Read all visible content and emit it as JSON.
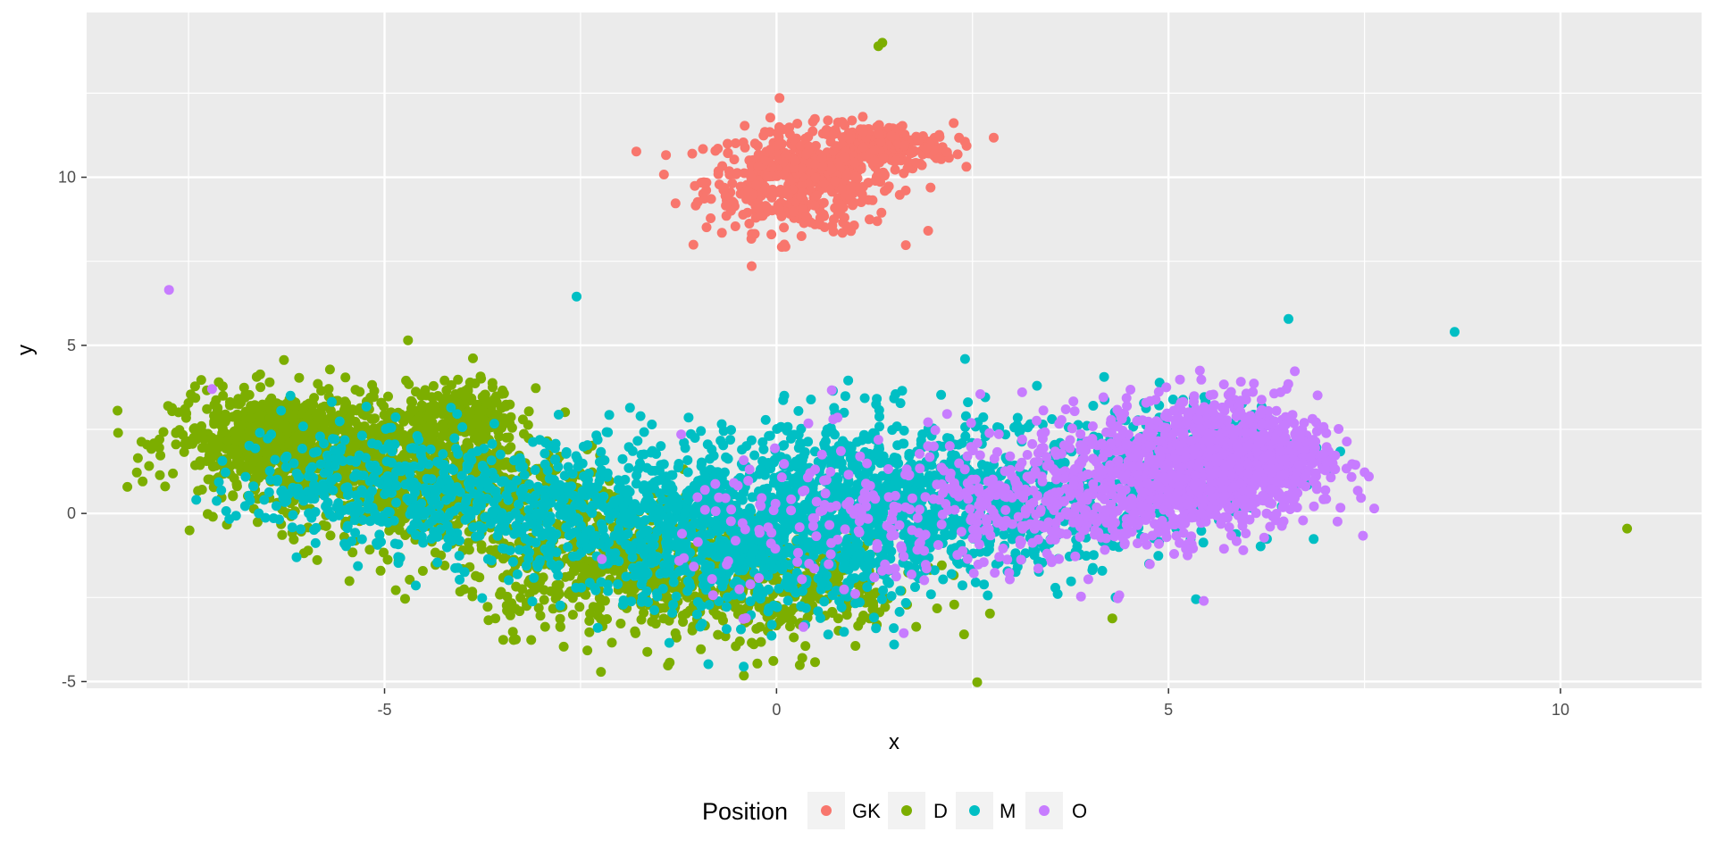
{
  "chart_data": {
    "type": "scatter",
    "title": "",
    "xlabel": "x",
    "ylabel": "y",
    "xlim": [
      -8.8,
      11.8
    ],
    "ylim": [
      -5.2,
      14.9
    ],
    "x_ticks": [
      -5,
      0,
      5,
      10
    ],
    "y_ticks": [
      -5,
      0,
      5,
      10
    ],
    "x_tick_labels": [
      "-5",
      "0",
      "5",
      "10"
    ],
    "y_tick_labels": [
      "-5",
      "0",
      "5",
      "10"
    ],
    "grid": true,
    "background": "#ebebeb",
    "legend": {
      "title": "Position",
      "placement": "bottom"
    },
    "series": [
      {
        "name": "GK",
        "color": "#f8766d",
        "clusters": [
          {
            "cx": 0.3,
            "cy": 9.9,
            "sx": 0.6,
            "sy": 0.75,
            "n": 500
          },
          {
            "cx": 1.35,
            "cy": 10.9,
            "sx": 0.45,
            "sy": 0.35,
            "n": 240
          }
        ],
        "points": [
          [
            0.1,
            8.0
          ],
          [
            0.95,
            8.4
          ],
          [
            1.1,
            11.8
          ]
        ]
      },
      {
        "name": "D",
        "color": "#7cae00",
        "clusters": [
          {
            "cx": -6.3,
            "cy": 2.1,
            "sx": 0.7,
            "sy": 0.75,
            "n": 800
          },
          {
            "cx": -4.5,
            "cy": 1.0,
            "sx": 0.9,
            "sy": 1.0,
            "n": 700
          },
          {
            "cx": -4.0,
            "cy": 3.0,
            "sx": 0.35,
            "sy": 0.45,
            "n": 220
          },
          {
            "cx": -2.0,
            "cy": -1.4,
            "sx": 1.0,
            "sy": 1.0,
            "n": 600
          },
          {
            "cx": 0.0,
            "cy": -2.3,
            "sx": 1.0,
            "sy": 0.9,
            "n": 350
          }
        ],
        "points": [
          [
            1.35,
            14.0
          ],
          [
            1.3,
            13.9
          ],
          [
            -4.7,
            5.15
          ],
          [
            10.85,
            -0.45
          ],
          [
            -7.4,
            2.2
          ],
          [
            -7.2,
            2.25
          ],
          [
            -7.5,
            2.15
          ]
        ]
      },
      {
        "name": "M",
        "color": "#00bfc4",
        "clusters": [
          {
            "cx": -3.0,
            "cy": 0.2,
            "sx": 1.2,
            "sy": 1.0,
            "n": 500
          },
          {
            "cx": -0.5,
            "cy": -0.5,
            "sx": 1.1,
            "sy": 1.2,
            "n": 800
          },
          {
            "cx": 1.2,
            "cy": 0.3,
            "sx": 1.0,
            "sy": 1.3,
            "n": 700
          },
          {
            "cx": 3.0,
            "cy": 0.3,
            "sx": 0.9,
            "sy": 1.0,
            "n": 450
          },
          {
            "cx": 5.0,
            "cy": 1.5,
            "sx": 0.8,
            "sy": 1.0,
            "n": 300
          },
          {
            "cx": -5.5,
            "cy": 1.0,
            "sx": 0.7,
            "sy": 0.9,
            "n": 220
          }
        ],
        "points": [
          [
            -2.55,
            6.45
          ],
          [
            8.65,
            5.4
          ],
          [
            5.35,
            -2.55
          ],
          [
            -6.2,
            3.5
          ],
          [
            1.5,
            -3.9
          ]
        ]
      },
      {
        "name": "O",
        "color": "#c77cff",
        "clusters": [
          {
            "cx": 5.5,
            "cy": 1.5,
            "sx": 0.7,
            "sy": 1.0,
            "n": 900
          },
          {
            "cx": 6.4,
            "cy": 1.7,
            "sx": 0.35,
            "sy": 0.6,
            "n": 240
          },
          {
            "cx": 3.8,
            "cy": 0.6,
            "sx": 0.9,
            "sy": 1.0,
            "n": 400
          },
          {
            "cx": 1.2,
            "cy": -0.3,
            "sx": 1.2,
            "sy": 1.2,
            "n": 200
          }
        ],
        "points": [
          [
            -7.75,
            6.65
          ],
          [
            -7.2,
            3.7
          ],
          [
            5.45,
            -2.6
          ],
          [
            5.4,
            4.25
          ],
          [
            2.6,
            3.55
          ]
        ]
      }
    ]
  }
}
